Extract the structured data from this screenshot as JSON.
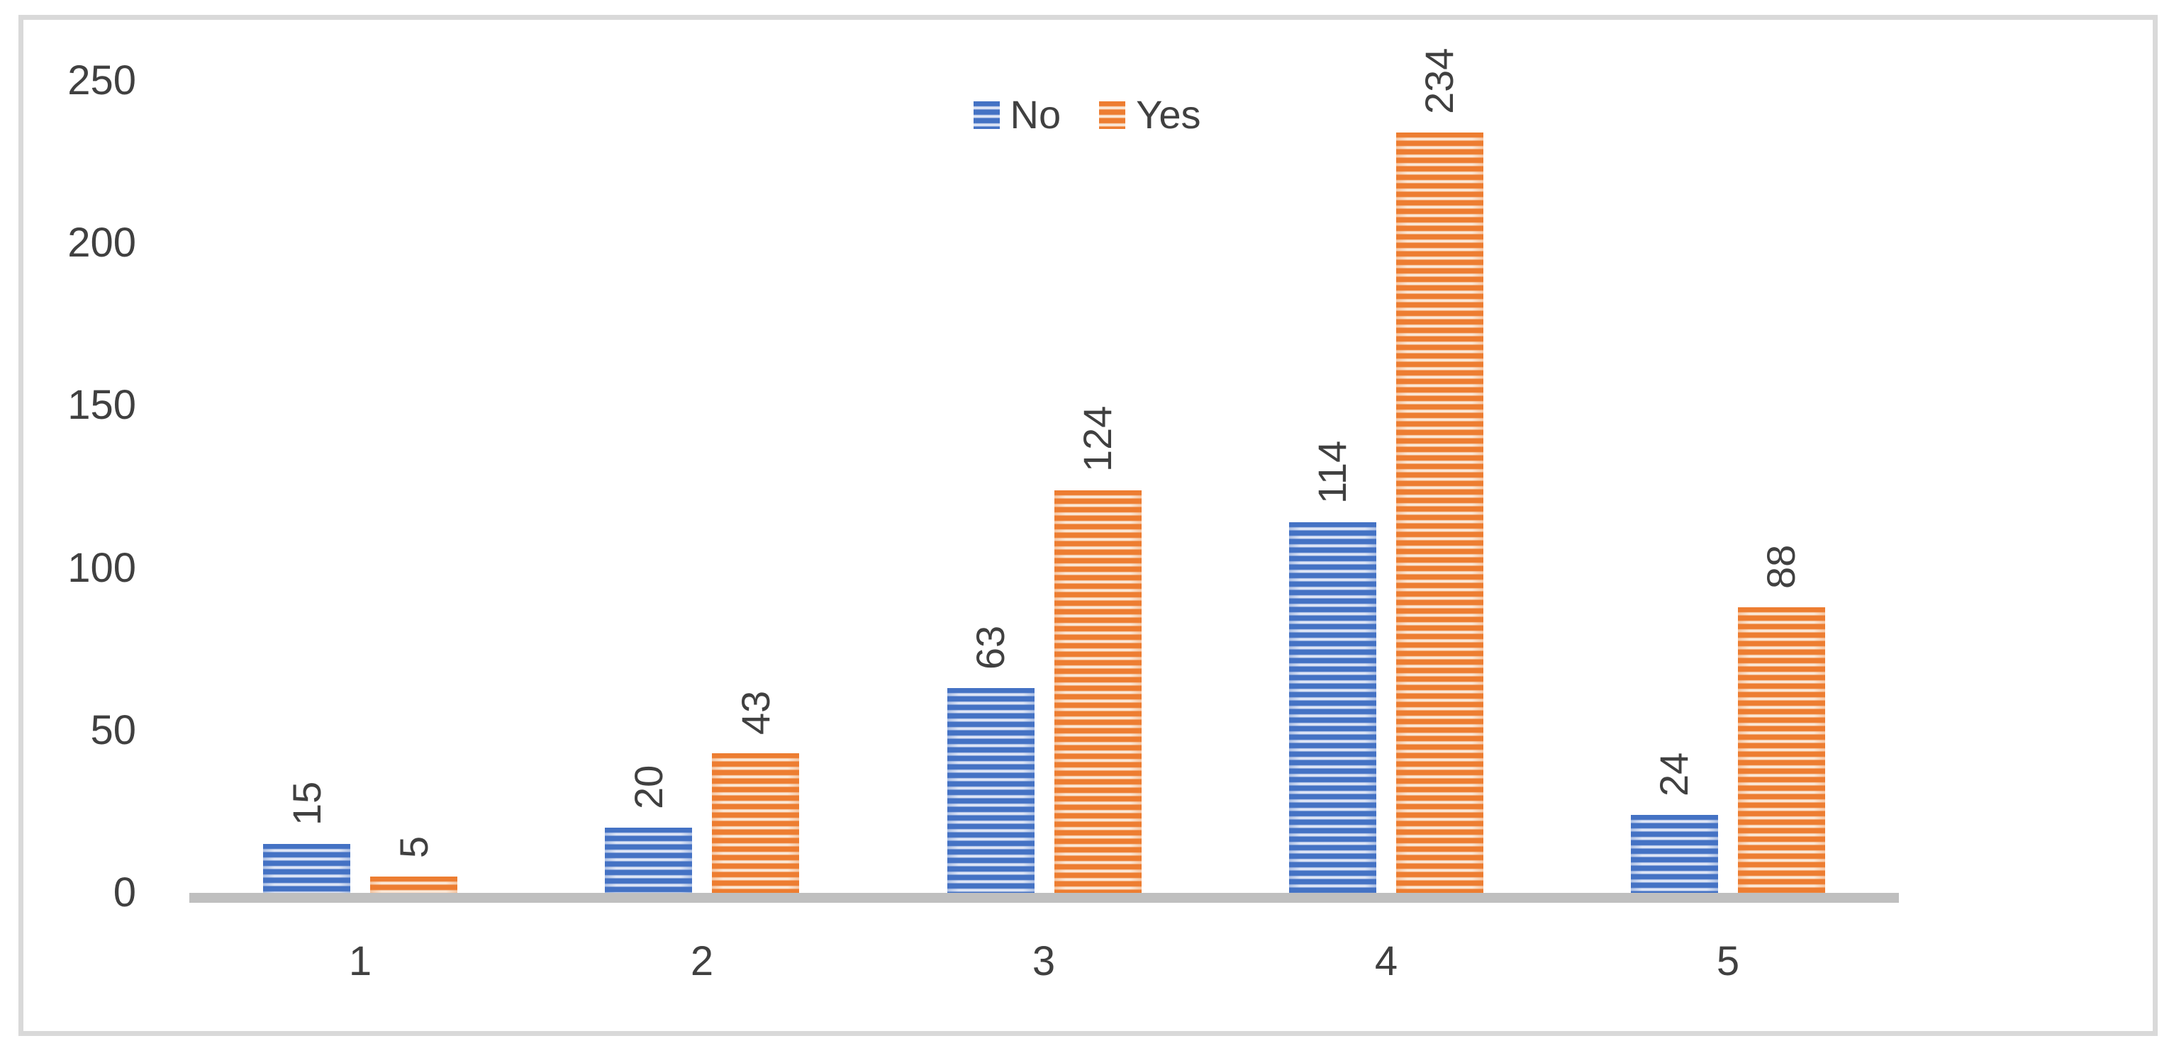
{
  "chart_data": {
    "type": "bar",
    "title": "",
    "xlabel": "",
    "ylabel": "",
    "categories": [
      "1",
      "2",
      "3",
      "4",
      "5"
    ],
    "series": [
      {
        "name": "No",
        "values": [
          15,
          20,
          63,
          114,
          24
        ],
        "color_dark": "#4472C4",
        "color_light": "#C6D3EE",
        "color_light2": "#E9EEF9"
      },
      {
        "name": "Yes",
        "values": [
          5,
          43,
          124,
          234,
          88
        ],
        "color_dark": "#ED7D31",
        "color_light": "#F8D7BB",
        "color_light2": "#FDF0E4"
      }
    ],
    "data_labels": {
      "shown": true,
      "rotation": -90,
      "color": "#404040"
    },
    "ylim": [
      0,
      250
    ],
    "yticks": [
      0,
      50,
      100,
      150,
      200,
      250
    ],
    "grid": false,
    "legend_position": "top-center",
    "bar_pattern": "horizontal-stripes",
    "colors": {
      "axis_line": "#BFBFBF",
      "frame_border": "#D9D9D9",
      "text": "#404040",
      "background": "#FFFFFF"
    }
  }
}
